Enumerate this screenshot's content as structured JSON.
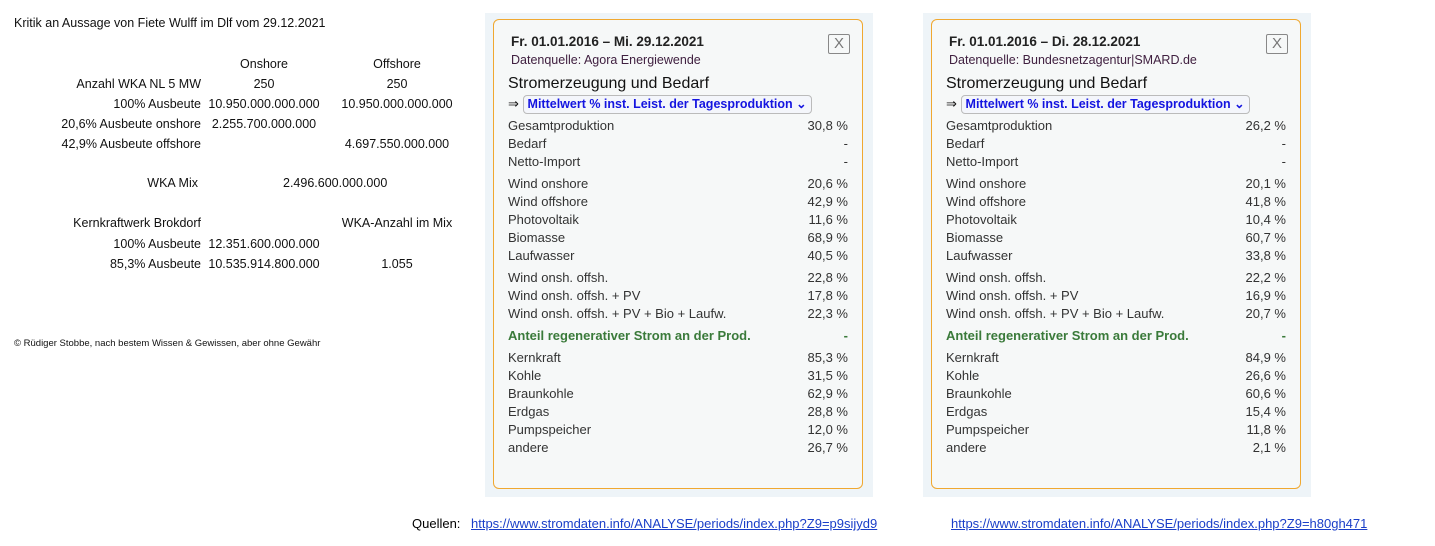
{
  "sheet": {
    "title": "Kritik an Aussage von Fiete Wulff im Dlf vom 29.12.2021",
    "col_onshore": "Onshore",
    "col_offshore": "Offshore",
    "rows": [
      {
        "label": "Anzahl WKA NL 5 MW",
        "on": "250",
        "off": "250"
      },
      {
        "label": "100% Ausbeute",
        "on": "10.950.000.000.000",
        "off": "10.950.000.000.000"
      },
      {
        "label": "20,6% Ausbeute onshore",
        "on": "2.255.700.000.000",
        "off": ""
      },
      {
        "label": "42,9% Ausbeute offshore",
        "on": "",
        "off": "4.697.550.000.000"
      }
    ],
    "mix_label": "WKA Mix",
    "mix_value": "2.496.600.000.000",
    "kkw_label": "Kernkraftwerk Brokdorf",
    "kkw_col": "WKA-Anzahl im Mix",
    "kkw_rows": [
      {
        "label": "100% Ausbeute",
        "val": "12.351.600.000.000",
        "n": ""
      },
      {
        "label": "85,3% Ausbeute",
        "val": "10.535.914.800.000",
        "n": "1.055"
      }
    ],
    "copyright": "© Rüdiger Stobbe, nach bestem Wissen & Gewissen, aber ohne Gewähr"
  },
  "panels": [
    {
      "date": "Fr. 01.01.2016 – Mi. 29.12.2021",
      "source": "Datenquelle: Agora Energiewende",
      "close": "X",
      "heading": "Stromerzeugung und Bedarf",
      "arrow": "⇒",
      "select": "Mittelwert % inst. Leist. der Tagesproduktion",
      "g1": [
        [
          "Gesamtproduktion",
          "30,8 %"
        ],
        [
          "Bedarf",
          "-"
        ],
        [
          "Netto-Import",
          "-"
        ]
      ],
      "g2": [
        [
          "Wind onshore",
          "20,6 %"
        ],
        [
          "Wind offshore",
          "42,9 %"
        ],
        [
          "Photovoltaik",
          "11,6 %"
        ],
        [
          "Biomasse",
          "68,9 %"
        ],
        [
          "Laufwasser",
          "40,5 %"
        ]
      ],
      "g3": [
        [
          "Wind onsh. offsh.",
          "22,8 %"
        ],
        [
          "Wind onsh. offsh. + PV",
          "17,8 %"
        ],
        [
          "Wind onsh. offsh. + PV + Bio + Laufw.",
          "22,3 %"
        ]
      ],
      "g4": [
        [
          "Anteil regenerativer Strom an der Prod.",
          "-"
        ]
      ],
      "g5": [
        [
          "Kernkraft",
          "85,3 %"
        ],
        [
          "Kohle",
          "31,5 %"
        ],
        [
          "Braunkohle",
          "62,9 %"
        ],
        [
          "Erdgas",
          "28,8 %"
        ],
        [
          "Pumpspeicher",
          "12,0 %"
        ],
        [
          "andere",
          "26,7 %"
        ]
      ]
    },
    {
      "date": "Fr. 01.01.2016 – Di. 28.12.2021",
      "source": "Datenquelle: Bundesnetzagentur|SMARD.de",
      "close": "X",
      "heading": "Stromerzeugung und Bedarf",
      "arrow": "⇒",
      "select": "Mittelwert % inst. Leist. der Tagesproduktion",
      "g1": [
        [
          "Gesamtproduktion",
          "26,2 %"
        ],
        [
          "Bedarf",
          "-"
        ],
        [
          "Netto-Import",
          "-"
        ]
      ],
      "g2": [
        [
          "Wind onshore",
          "20,1 %"
        ],
        [
          "Wind offshore",
          "41,8 %"
        ],
        [
          "Photovoltaik",
          "10,4 %"
        ],
        [
          "Biomasse",
          "60,7 %"
        ],
        [
          "Laufwasser",
          "33,8 %"
        ]
      ],
      "g3": [
        [
          "Wind onsh. offsh.",
          "22,2 %"
        ],
        [
          "Wind onsh. offsh. + PV",
          "16,9 %"
        ],
        [
          "Wind onsh. offsh. + PV + Bio + Laufw.",
          "20,7 %"
        ]
      ],
      "g4": [
        [
          "Anteil regenerativer Strom an der Prod.",
          "-"
        ]
      ],
      "g5": [
        [
          "Kernkraft",
          "84,9 %"
        ],
        [
          "Kohle",
          "26,6 %"
        ],
        [
          "Braunkohle",
          "60,6 %"
        ],
        [
          "Erdgas",
          "15,4 %"
        ],
        [
          "Pumpspeicher",
          "11,8 %"
        ],
        [
          "andere",
          "2,1 %"
        ]
      ]
    }
  ],
  "sources": {
    "label": "Quellen:",
    "link1": "https://www.stromdaten.info/ANALYSE/periods/index.php?Z9=p9sijyd9",
    "link2": "https://www.stromdaten.info/ANALYSE/periods/index.php?Z9=h80gh471"
  }
}
